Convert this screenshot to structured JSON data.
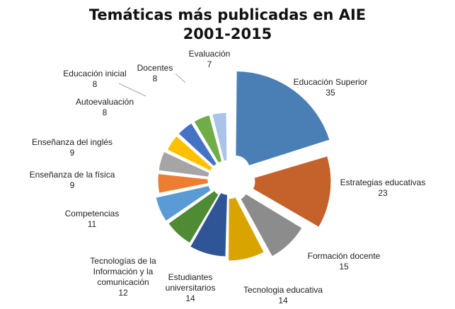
{
  "chart_data": {
    "type": "pie",
    "title": [
      "Temáticas más publicadas en AIE",
      "2001-2015"
    ],
    "legend": "none",
    "slices": [
      {
        "name": "Educación Superior",
        "value": 35,
        "label_lines": [
          "Educación Superior"
        ],
        "color": "#4a7fb5"
      },
      {
        "name": "Estrategias educativas",
        "value": 23,
        "label_lines": [
          "Estrategias educativas"
        ],
        "color": "#c5612b"
      },
      {
        "name": "Formación docente",
        "value": 15,
        "label_lines": [
          "Formación docente"
        ],
        "color": "#8c8c8c"
      },
      {
        "name": "Tecnologia educativa",
        "value": 14,
        "label_lines": [
          "Tecnologia educativa"
        ],
        "color": "#d9a300"
      },
      {
        "name": "Estudiantes universitarios",
        "value": 14,
        "label_lines": [
          "Estudiantes",
          "universitarios"
        ],
        "color": "#2f5597"
      },
      {
        "name": "Tecnologías de la Información y la comunicación",
        "value": 12,
        "label_lines": [
          "Tecnologías de la",
          "Información y la",
          "comunicación"
        ],
        "color": "#4f8a35"
      },
      {
        "name": "Competencias",
        "value": 11,
        "label_lines": [
          "Competencias"
        ],
        "color": "#5b9bd5"
      },
      {
        "name": "Enseñanza de la física",
        "value": 9,
        "label_lines": [
          "Enseñanza de la física"
        ],
        "color": "#ed7d31"
      },
      {
        "name": "Enseñanza del inglés",
        "value": 9,
        "label_lines": [
          "Enseñanza del inglés"
        ],
        "color": "#a5a5a5"
      },
      {
        "name": "Autoevaluación",
        "value": 8,
        "label_lines": [
          "Autoevaluación"
        ],
        "color": "#ffc000"
      },
      {
        "name": "Educación inicial",
        "value": 8,
        "label_lines": [
          "Educación inicial"
        ],
        "color": "#4472c4"
      },
      {
        "name": "Docentes",
        "value": 8,
        "label_lines": [
          "Docentes"
        ],
        "color": "#70ad47"
      },
      {
        "name": "Evaluación",
        "value": 7,
        "label_lines": [
          "Evaluación"
        ],
        "color": "#a9c4e8"
      }
    ]
  }
}
